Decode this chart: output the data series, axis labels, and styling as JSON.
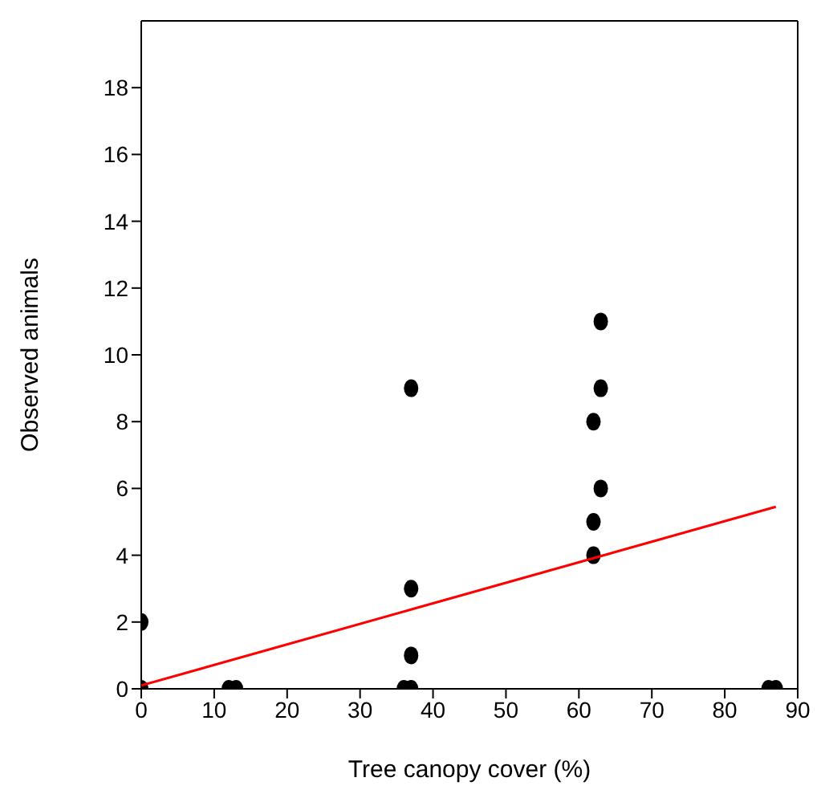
{
  "chart_data": {
    "type": "scatter",
    "xlabel": "Tree canopy cover (%)",
    "ylabel": "Observed animals",
    "xlim": [
      0,
      90
    ],
    "xticks": [
      0,
      10,
      20,
      30,
      40,
      50,
      60,
      70,
      80,
      90
    ],
    "ylim": [
      0,
      20
    ],
    "yticks": [
      0,
      2,
      4,
      6,
      8,
      10,
      12,
      14,
      16,
      18
    ],
    "legend": false,
    "series": [
      {
        "color": "#000000",
        "marker": "circle",
        "x": [
          0,
          0,
          12,
          13,
          36,
          37,
          37,
          37,
          37,
          62,
          62,
          62,
          63,
          63,
          63,
          86,
          87
        ],
        "values": [
          2,
          0,
          0,
          0,
          0,
          0,
          1,
          3,
          9,
          8,
          5,
          4,
          11,
          9,
          6,
          0,
          0
        ]
      },
      {
        "type": "line",
        "color": "#ff0000",
        "x": [
          0,
          87
        ],
        "values": [
          0.1,
          5.45
        ]
      }
    ]
  }
}
